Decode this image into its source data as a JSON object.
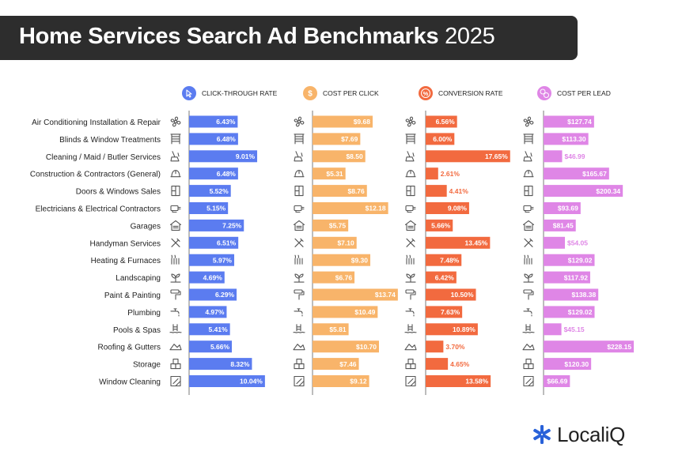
{
  "header": {
    "title": "Home Services Search Ad Benchmarks",
    "year": "2025"
  },
  "brand": {
    "logo_text": "LocaliQ"
  },
  "colors": {
    "ctr": "#5b7cf0",
    "cpc": "#f8b46a",
    "cvr": "#f26a3f",
    "cpl": "#df86e6",
    "banner": "#2d2d2d",
    "logo_accent": "#2962d9"
  },
  "chart_data": {
    "type": "bar",
    "orientation": "horizontal",
    "title": "Home Services Search Ad Benchmarks 2025",
    "categories": [
      "Air Conditioning Installation & Repair",
      "Blinds & Window Treatments",
      "Cleaning / Maid / Butler Services",
      "Construction & Contractors (General)",
      "Doors & Windows Sales",
      "Electricians & Electrical Contractors",
      "Garages",
      "Handyman Services",
      "Heating & Furnaces",
      "Landscaping",
      "Paint & Painting",
      "Plumbing",
      "Pools & Spas",
      "Roofing & Gutters",
      "Storage",
      "Window Cleaning"
    ],
    "category_icons": [
      "ac-fan-icon",
      "blinds-icon",
      "cleaning-broom-icon",
      "hard-hat-icon",
      "door-icon",
      "electrical-plug-icon",
      "garage-icon",
      "tools-icon",
      "heater-icon",
      "plant-icon",
      "paint-roller-icon",
      "faucet-icon",
      "pool-ladder-icon",
      "roof-icon",
      "storage-boxes-icon",
      "window-squeegee-icon"
    ],
    "series": [
      {
        "key": "ctr",
        "name": "CLICK-THROUGH RATE",
        "icon": "cursor-click-icon",
        "format": "percent",
        "values": [
          6.43,
          6.48,
          9.01,
          6.48,
          5.52,
          5.15,
          7.25,
          6.51,
          5.97,
          4.69,
          6.29,
          4.97,
          5.41,
          5.66,
          8.32,
          10.04
        ],
        "labels": [
          "6.43%",
          "6.48%",
          "9.01%",
          "6.48%",
          "5.52%",
          "5.15%",
          "7.25%",
          "6.51%",
          "5.97%",
          "4.69%",
          "6.29%",
          "4.97%",
          "5.41%",
          "5.66%",
          "8.32%",
          "10.04%"
        ]
      },
      {
        "key": "cpc",
        "name": "COST PER CLICK",
        "icon": "dollar-cursor-icon",
        "format": "currency",
        "values": [
          9.68,
          7.69,
          8.5,
          5.31,
          8.76,
          12.18,
          5.75,
          7.1,
          9.3,
          6.76,
          13.74,
          10.49,
          5.81,
          10.7,
          7.46,
          9.12
        ],
        "labels": [
          "$9.68",
          "$7.69",
          "$8.50",
          "$5.31",
          "$8.76",
          "$12.18",
          "$5.75",
          "$7.10",
          "$9.30",
          "$6.76",
          "$13.74",
          "$10.49",
          "$5.81",
          "$10.70",
          "$7.46",
          "$9.12"
        ]
      },
      {
        "key": "cvr",
        "name": "CONVERSION RATE",
        "icon": "percent-icon",
        "format": "percent",
        "values": [
          6.56,
          6.0,
          17.65,
          2.61,
          4.41,
          9.08,
          5.66,
          13.45,
          7.48,
          6.42,
          10.5,
          7.63,
          10.89,
          3.7,
          4.65,
          13.58
        ],
        "labels": [
          "6.56%",
          "6.00%",
          "17.65%",
          "2.61%",
          "4.41%",
          "9.08%",
          "5.66%",
          "13.45%",
          "7.48%",
          "6.42%",
          "10.50%",
          "7.63%",
          "10.89%",
          "3.70%",
          "4.65%",
          "13.58%"
        ]
      },
      {
        "key": "cpl",
        "name": "COST PER LEAD",
        "icon": "dollar-people-icon",
        "format": "currency",
        "values": [
          127.74,
          113.3,
          46.99,
          165.67,
          200.34,
          93.69,
          81.45,
          54.05,
          129.02,
          117.92,
          138.38,
          129.02,
          45.15,
          228.15,
          120.3,
          66.69
        ],
        "labels": [
          "$127.74",
          "$113.30",
          "$46.99",
          "$165.67",
          "$200.34",
          "$93.69",
          "$81.45",
          "$54.05",
          "$129.02",
          "$117.92",
          "$138.38",
          "$129.02",
          "$45.15",
          "$228.15",
          "$120.30",
          "$66.69"
        ]
      }
    ],
    "xlabel": "",
    "ylabel": "",
    "legend": "column headers above each panel",
    "grid": false
  }
}
